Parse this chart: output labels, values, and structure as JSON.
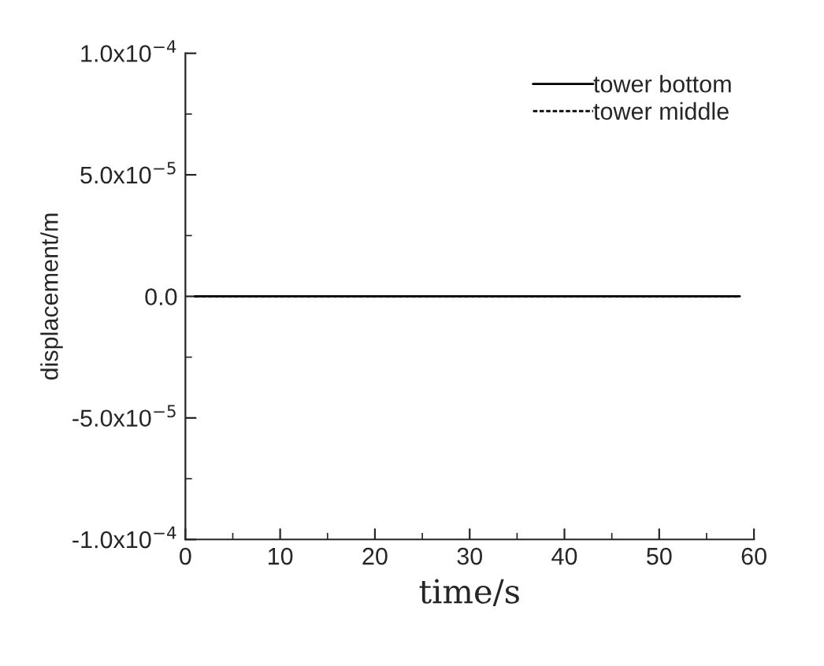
{
  "chart_data": {
    "type": "line",
    "xlabel": "time/s",
    "ylabel": "displacement/m",
    "x": [
      1,
      58.5
    ],
    "series": [
      {
        "name": "tower bottom",
        "color": "#000000",
        "values": [
          0,
          0
        ],
        "line_style": "solid"
      },
      {
        "name": "tower middle",
        "color": "#000000",
        "values": [
          0,
          0
        ],
        "line_style": "dashed"
      }
    ],
    "xlim": [
      0,
      60
    ],
    "xticks": [
      0,
      10,
      20,
      30,
      40,
      50,
      60
    ],
    "ylim": [
      -0.0001,
      0.0001
    ],
    "yticks": [
      {
        "value": -0.0001,
        "label": "-1.0x10$^{−4}$"
      },
      {
        "value": -5e-05,
        "label": "-5.0x10$^{−5}$"
      },
      {
        "value": 0,
        "label": "0.0"
      },
      {
        "value": 5e-05,
        "label": "5.0x10$^{−5}$"
      },
      {
        "value": 0.0001,
        "label": "1.0x10$^{−4}$"
      }
    ],
    "legend": "top right",
    "grid": false,
    "marker": "none"
  }
}
